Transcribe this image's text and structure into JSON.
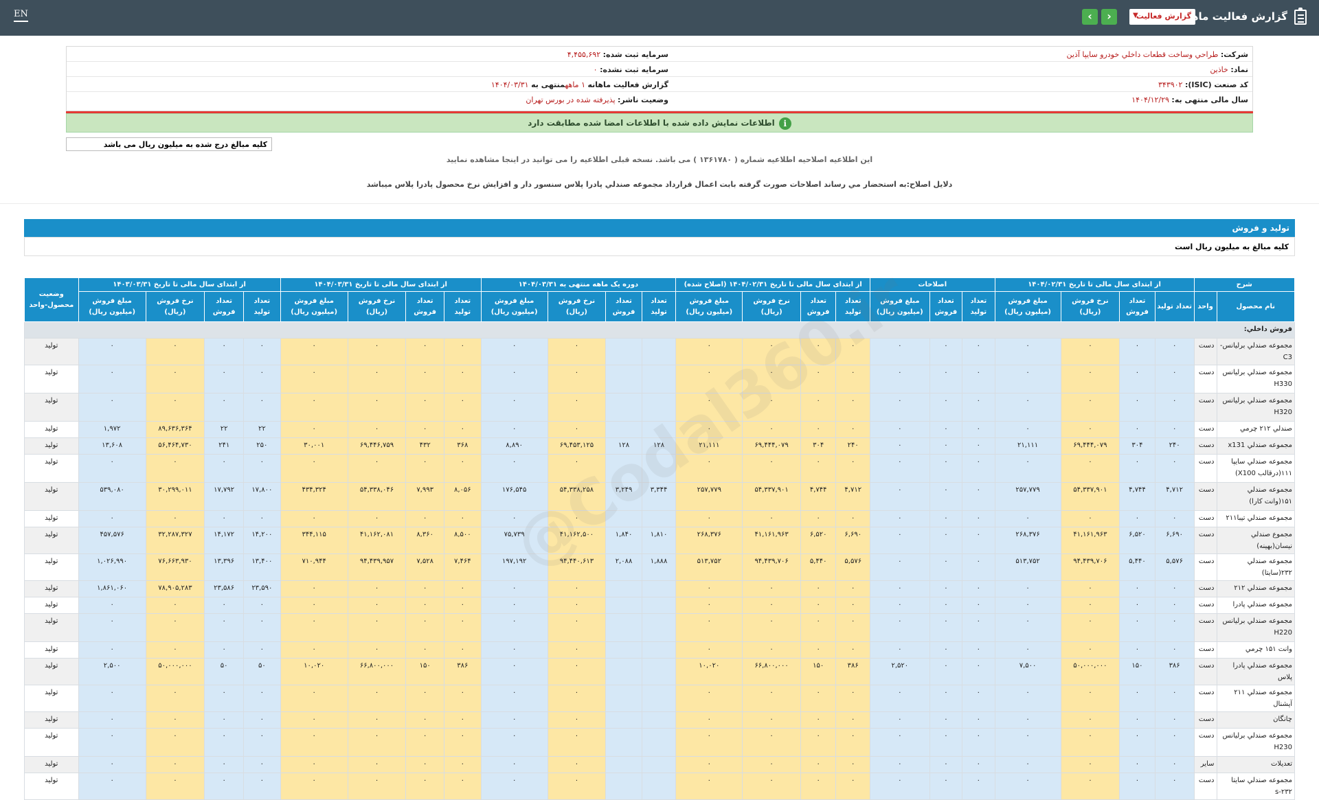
{
  "header": {
    "title": "گزارش فعالیت ماهانه",
    "report_type": "گزارش فعالیت",
    "lang": "EN"
  },
  "info": {
    "company_label": "شرکت:",
    "company": "طراحي وساخت قطعات داخلي خودرو سايپا آذين",
    "symbol_label": "نماد:",
    "symbol": "خاذین",
    "isic_label": "کد صنعت (ISIC):",
    "isic": "۳۴۳۹۰۲",
    "fiscal_label": "سال مالی منتهی به:",
    "fiscal": "۱۴۰۴/۱۲/۲۹",
    "capital_reg_label": "سرمایه ثبت شده:",
    "capital_reg": "۴,۴۵۵,۶۹۲",
    "capital_unreg_label": "سرمایه ثبت نشده:",
    "capital_unreg": "۰",
    "monthly_label": "گزارش فعالیت ماهانه",
    "monthly": "۱ ماهه",
    "monthly_end": "منتهی به",
    "monthly_date": "۱۴۰۴/۰۳/۳۱",
    "status_label": "وضعیت ناشر:",
    "status": "پذیرفته شده در بورس تهران"
  },
  "notice": "اطلاعات نمایش داده شده با اطلاعات امضا شده مطابقت دارد",
  "unit_note": "کلیه مبالغ درج شده به میلیون ریال می باشد",
  "correction_notice": "این اطلاعیه اصلاحیه اطلاعیه شماره ( ۱۳۶۱۷۸۰ ) می باشد. نسخه قبلی اطلاعیه را می توانید در اینجا مشاهده نمایید",
  "correction_reason": "دلایل اصلاح:به استحضار مي رساند اصلاحات صورت گرفته بابت اعمال قرارداد مجموعه صندلي پادرا پلاس سنسور دار و افزايش نرخ محصول پادرا پلاس ميباشد",
  "section": {
    "title": "تولید و فروش",
    "subtitle": "کلیه مبالغ به میلیون ریال است"
  },
  "table": {
    "group_headers": [
      "شرح",
      "از ابتدای سال مالی تا تاریخ ۱۴۰۴/۰۲/۳۱",
      "اصلاحات",
      "از ابتدای سال مالی تا تاریخ ۱۴۰۴/۰۲/۳۱ (اصلاح شده)",
      "دوره یک ماهه منتهی به ۱۴۰۴/۰۳/۳۱",
      "از ابتدای سال مالی تا تاریخ ۱۴۰۴/۰۳/۳۱",
      "از ابتدای سال مالی تا تاریخ ۱۴۰۳/۰۳/۳۱",
      "وضعیت محصول-واحد"
    ],
    "sub_headers": [
      "نام محصول",
      "واحد",
      "تعداد تولید",
      "تعداد فروش",
      "نرخ فروش (ریال)",
      "مبلغ فروش (میلیون ریال)",
      "تعداد تولید",
      "تعداد فروش",
      "مبلغ فروش (میلیون ریال)",
      "تعداد تولید",
      "تعداد فروش",
      "نرخ فروش (ریال)",
      "مبلغ فروش (میلیون ریال)",
      "تعداد تولید",
      "تعداد فروش",
      "نرخ فروش (ریال)",
      "مبلغ فروش (میلیون ریال)",
      "تعداد تولید",
      "تعداد فروش",
      "نرخ فروش (ریال)",
      "مبلغ فروش (میلیون ریال)",
      "تعداد تولید",
      "تعداد فروش",
      "نرخ فروش (ریال)",
      "مبلغ فروش (میلیون ریال)"
    ],
    "category": "فروش داخلي:",
    "rows": [
      {
        "name": "مجموعه صندلي برليانس-C3",
        "unit": "دست",
        "tall": false,
        "v": [
          "۰",
          "۰",
          "۰",
          "۰",
          "۰",
          "۰",
          "۰",
          "۰",
          "۰",
          "۰",
          "۰",
          "",
          "",
          "۰",
          "۰",
          "۰",
          "۰",
          "۰",
          "۰",
          "۰",
          "۰",
          "۰",
          "۰"
        ],
        "status": "تولید"
      },
      {
        "name": "مجموعه صندلي برليانس H330",
        "unit": "دست",
        "tall": true,
        "v": [
          "۰",
          "۰",
          "۰",
          "۰",
          "۰",
          "۰",
          "۰",
          "۰",
          "۰",
          "۰",
          "۰",
          "",
          "",
          "۰",
          "۰",
          "۰",
          "۰",
          "۰",
          "۰",
          "۰",
          "۰",
          "۰",
          "۰"
        ],
        "status": "تولید"
      },
      {
        "name": "مجموعه صندلي برليانس H320",
        "unit": "دست",
        "tall": true,
        "v": [
          "۰",
          "۰",
          "۰",
          "۰",
          "۰",
          "۰",
          "۰",
          "۰",
          "۰",
          "۰",
          "۰",
          "",
          "",
          "۰",
          "۰",
          "۰",
          "۰",
          "۰",
          "۰",
          "۰",
          "۰",
          "۰",
          "۰"
        ],
        "status": "تولید"
      },
      {
        "name": "صندلي ۲۱۲ چرمي",
        "unit": "دست",
        "tall": false,
        "v": [
          "۰",
          "۰",
          "۰",
          "۰",
          "۰",
          "۰",
          "۰",
          "۰",
          "۰",
          "۰",
          "۰",
          "",
          "",
          "۰",
          "۰",
          "۰",
          "۰",
          "۰",
          "۰",
          "۲۲",
          "۲۲",
          "۸۹,۶۳۶,۳۶۴",
          "۱,۹۷۲"
        ],
        "status": "تولید"
      },
      {
        "name": "مجموعه صندلي x131",
        "unit": "دست",
        "tall": false,
        "v": [
          "۲۴۰",
          "۳۰۴",
          "۶۹,۴۴۴,۰۷۹",
          "۲۱,۱۱۱",
          "۰",
          "۰",
          "۰",
          "۲۴۰",
          "۳۰۴",
          "۶۹,۴۴۴,۰۷۹",
          "۲۱,۱۱۱",
          "۱۲۸",
          "۱۲۸",
          "۶۹,۴۵۳,۱۲۵",
          "۸,۸۹۰",
          "۳۶۸",
          "۴۳۲",
          "۶۹,۴۴۶,۷۵۹",
          "۳۰,۰۰۱",
          "۲۵۰",
          "۲۴۱",
          "۵۶,۴۶۴,۷۳۰",
          "۱۳,۶۰۸"
        ],
        "status": "تولید"
      },
      {
        "name": "مجموعه صندلي سايپا ۱۱۱(درقالب X100)",
        "unit": "دست",
        "tall": true,
        "v": [
          "۰",
          "۰",
          "۰",
          "۰",
          "۰",
          "۰",
          "۰",
          "۰",
          "۰",
          "۰",
          "۰",
          "",
          "",
          "۰",
          "۰",
          "۰",
          "۰",
          "۰",
          "۰",
          "۰",
          "۰",
          "۰",
          "۰"
        ],
        "status": "تولید"
      },
      {
        "name": "مجموعه صندلي ۱۵۱(وانت كارا)",
        "unit": "دست",
        "tall": true,
        "v": [
          "۴,۷۱۲",
          "۴,۷۴۴",
          "۵۴,۳۳۷,۹۰۱",
          "۲۵۷,۷۷۹",
          "۰",
          "۰",
          "۰",
          "۴,۷۱۲",
          "۴,۷۴۴",
          "۵۴,۳۳۷,۹۰۱",
          "۲۵۷,۷۷۹",
          "۳,۳۴۴",
          "۳,۲۴۹",
          "۵۴,۳۳۸,۲۵۸",
          "۱۷۶,۵۴۵",
          "۸,۰۵۶",
          "۷,۹۹۳",
          "۵۴,۳۳۸,۰۴۶",
          "۴۳۴,۳۲۴",
          "۱۷,۸۰۰",
          "۱۷,۷۹۲",
          "۳۰,۲۹۹,۰۱۱",
          "۵۳۹,۰۸۰"
        ],
        "status": "تولید"
      },
      {
        "name": "مجموعه صندلي تيبا۲۱۱",
        "unit": "دست",
        "tall": false,
        "v": [
          "۰",
          "۰",
          "۰",
          "۰",
          "۰",
          "۰",
          "۰",
          "۰",
          "۰",
          "۰",
          "۰",
          "",
          "",
          "۰",
          "۰",
          "۰",
          "۰",
          "۰",
          "۰",
          "۰",
          "۰",
          "۰",
          "۰"
        ],
        "status": "تولید"
      },
      {
        "name": "مجموع صندلي نيسان(بهينه)",
        "unit": "دست",
        "tall": false,
        "v": [
          "۶,۶۹۰",
          "۶,۵۲۰",
          "۴۱,۱۶۱,۹۶۳",
          "۲۶۸,۳۷۶",
          "۰",
          "۰",
          "۰",
          "۶,۶۹۰",
          "۶,۵۲۰",
          "۴۱,۱۶۱,۹۶۳",
          "۲۶۸,۳۷۶",
          "۱,۸۱۰",
          "۱,۸۴۰",
          "۴۱,۱۶۲,۵۰۰",
          "۷۵,۷۳۹",
          "۸,۵۰۰",
          "۸,۳۶۰",
          "۴۱,۱۶۲,۰۸۱",
          "۳۴۴,۱۱۵",
          "۱۴,۲۰۰",
          "۱۴,۱۷۲",
          "۳۲,۲۸۷,۳۲۷",
          "۴۵۷,۵۷۶"
        ],
        "status": "تولید"
      },
      {
        "name": "مجموعه صندلي ۲۳۲(سايتا)",
        "unit": "دست",
        "tall": false,
        "v": [
          "۵,۵۷۶",
          "۵,۴۴۰",
          "۹۴,۴۳۹,۷۰۶",
          "۵۱۳,۷۵۲",
          "۰",
          "۰",
          "۰",
          "۵,۵۷۶",
          "۵,۴۴۰",
          "۹۴,۴۳۹,۷۰۶",
          "۵۱۳,۷۵۲",
          "۱,۸۸۸",
          "۲,۰۸۸",
          "۹۴,۴۴۰,۶۱۳",
          "۱۹۷,۱۹۲",
          "۷,۴۶۴",
          "۷,۵۲۸",
          "۹۴,۴۳۹,۹۵۷",
          "۷۱۰,۹۴۴",
          "۱۳,۴۰۰",
          "۱۳,۳۹۶",
          "۷۶,۶۶۳,۹۳۰",
          "۱,۰۲۶,۹۹۰"
        ],
        "status": "تولید"
      },
      {
        "name": "مجموعه صندلي ۲۱۲",
        "unit": "دست",
        "tall": false,
        "v": [
          "۰",
          "۰",
          "۰",
          "۰",
          "۰",
          "۰",
          "۰",
          "۰",
          "۰",
          "۰",
          "۰",
          "",
          "",
          "۰",
          "۰",
          "۰",
          "۰",
          "۰",
          "۰",
          "۲۳,۵۹۰",
          "۲۳,۵۸۶",
          "۷۸,۹۰۵,۲۸۳",
          "۱,۸۶۱,۰۶۰"
        ],
        "status": "تولید"
      },
      {
        "name": "مجموعه صندلي پادرا",
        "unit": "دست",
        "tall": false,
        "v": [
          "۰",
          "۰",
          "۰",
          "۰",
          "۰",
          "۰",
          "۰",
          "۰",
          "۰",
          "۰",
          "۰",
          "",
          "",
          "۰",
          "۰",
          "۰",
          "۰",
          "۰",
          "۰",
          "۰",
          "۰",
          "۰",
          "۰"
        ],
        "status": "تولید"
      },
      {
        "name": "مجموعه صندلي برليانس H220",
        "unit": "دست",
        "tall": true,
        "v": [
          "۰",
          "۰",
          "۰",
          "۰",
          "۰",
          "۰",
          "۰",
          "۰",
          "۰",
          "۰",
          "۰",
          "",
          "",
          "۰",
          "۰",
          "۰",
          "۰",
          "۰",
          "۰",
          "۰",
          "۰",
          "۰",
          "۰"
        ],
        "status": "تولید"
      },
      {
        "name": "وانت ۱۵۱ چرمي",
        "unit": "دست",
        "tall": false,
        "v": [
          "۰",
          "۰",
          "۰",
          "۰",
          "۰",
          "۰",
          "۰",
          "۰",
          "۰",
          "۰",
          "۰",
          "",
          "",
          "۰",
          "۰",
          "۰",
          "۰",
          "۰",
          "۰",
          "۰",
          "۰",
          "۰",
          "۰"
        ],
        "status": "تولید"
      },
      {
        "name": "مجموعه صندلي پادرا پلاس",
        "unit": "دست",
        "tall": false,
        "v": [
          "۳۸۶",
          "۱۵۰",
          "۵۰,۰۰۰,۰۰۰",
          "۷,۵۰۰",
          "۰",
          "۰",
          "۲,۵۲۰",
          "۳۸۶",
          "۱۵۰",
          "۶۶,۸۰۰,۰۰۰",
          "۱۰,۰۲۰",
          "",
          "",
          "۰",
          "۰",
          "۳۸۶",
          "۱۵۰",
          "۶۶,۸۰۰,۰۰۰",
          "۱۰,۰۲۰",
          "۵۰",
          "۵۰",
          "۵۰,۰۰۰,۰۰۰",
          "۲,۵۰۰"
        ],
        "status": "تولید"
      },
      {
        "name": "مجموعه صندلي ۲۱۱ آپشنال",
        "unit": "دست",
        "tall": false,
        "v": [
          "۰",
          "۰",
          "۰",
          "۰",
          "۰",
          "۰",
          "۰",
          "۰",
          "۰",
          "۰",
          "۰",
          "",
          "",
          "۰",
          "۰",
          "۰",
          "۰",
          "۰",
          "۰",
          "۰",
          "۰",
          "۰",
          "۰"
        ],
        "status": "تولید"
      },
      {
        "name": "چانگان",
        "unit": "دست",
        "tall": false,
        "v": [
          "۰",
          "۰",
          "۰",
          "۰",
          "۰",
          "۰",
          "۰",
          "۰",
          "۰",
          "۰",
          "۰",
          "",
          "",
          "۰",
          "۰",
          "۰",
          "۰",
          "۰",
          "۰",
          "۰",
          "۰",
          "۰",
          "۰"
        ],
        "status": "تولید"
      },
      {
        "name": "مجموعه صندلي برليانس H230",
        "unit": "دست",
        "tall": true,
        "v": [
          "۰",
          "۰",
          "۰",
          "۰",
          "۰",
          "۰",
          "۰",
          "۰",
          "۰",
          "۰",
          "۰",
          "",
          "",
          "۰",
          "۰",
          "۰",
          "۰",
          "۰",
          "۰",
          "۰",
          "۰",
          "۰",
          "۰"
        ],
        "status": "تولید"
      },
      {
        "name": "تعديلات",
        "unit": "ساير",
        "tall": false,
        "v": [
          "۰",
          "۰",
          "۰",
          "۰",
          "۰",
          "۰",
          "۰",
          "۰",
          "۰",
          "۰",
          "۰",
          "",
          "",
          "۰",
          "۰",
          "۰",
          "۰",
          "۰",
          "۰",
          "۰",
          "۰",
          "۰",
          "۰"
        ],
        "status": "تولید"
      },
      {
        "name": "مجموعه صندلي سايتا ۲۳۲-s",
        "unit": "دست",
        "tall": false,
        "v": [
          "۰",
          "۰",
          "۰",
          "۰",
          "۰",
          "۰",
          "۰",
          "۰",
          "۰",
          "۰",
          "۰",
          "",
          "",
          "۰",
          "۰",
          "۰",
          "۰",
          "۰",
          "۰",
          "۰",
          "۰",
          "۰",
          "۰"
        ],
        "status": "تولید"
      }
    ]
  },
  "watermark": "@Codal360.ir"
}
